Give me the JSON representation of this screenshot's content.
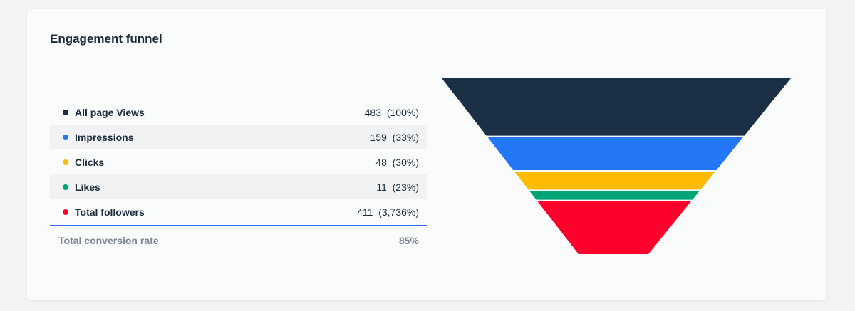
{
  "title": "Engagement funnel",
  "chart_data": {
    "type": "funnel",
    "rows": [
      {
        "label": "All page Views",
        "value": 483,
        "pct": "100%",
        "color": "#1b2f45"
      },
      {
        "label": "Impressions",
        "value": 159,
        "pct": "33%",
        "color": "#2477f4"
      },
      {
        "label": "Clicks",
        "value": 48,
        "pct": "30%",
        "color": "#ffbb00"
      },
      {
        "label": "Likes",
        "value": 11,
        "pct": "23%",
        "color": "#00a374"
      },
      {
        "label": "Total followers",
        "value": 411,
        "pct": "3,736%",
        "color": "#ff002d"
      }
    ],
    "total_label": "Total conversion rate",
    "total_value": "85%"
  }
}
